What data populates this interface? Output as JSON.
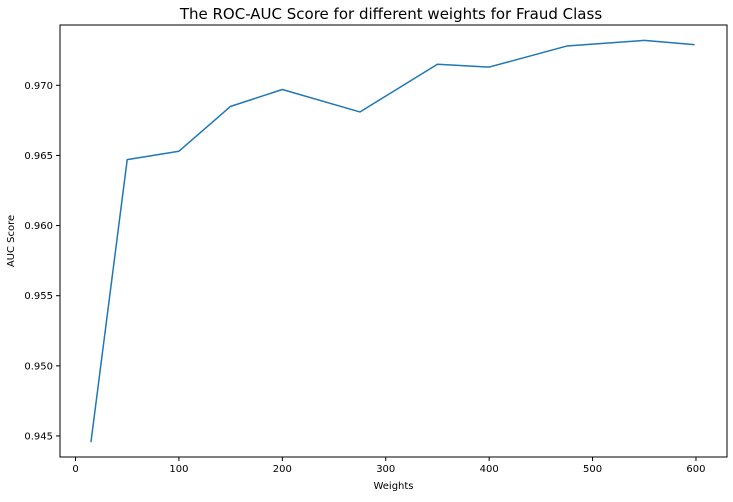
{
  "chart_data": {
    "type": "line",
    "title": "The ROC-AUC Score for different weights for Fraud Class",
    "xlabel": "Weights",
    "ylabel": "AUC Score",
    "xlim": [
      -15,
      630
    ],
    "ylim": [
      0.9435,
      0.9743
    ],
    "xticks": [
      0,
      100,
      200,
      300,
      400,
      500,
      600
    ],
    "yticks": [
      0.945,
      0.95,
      0.955,
      0.96,
      0.965,
      0.97
    ],
    "grid": false,
    "line_color": "#1f77b4",
    "series": [
      {
        "x": [
          15,
          50,
          100,
          150,
          200,
          275,
          350,
          400,
          475,
          550,
          598
        ],
        "values": [
          0.9446,
          0.9647,
          0.9653,
          0.9685,
          0.9697,
          0.9681,
          0.9715,
          0.9713,
          0.9728,
          0.9732,
          0.9729
        ]
      }
    ]
  }
}
